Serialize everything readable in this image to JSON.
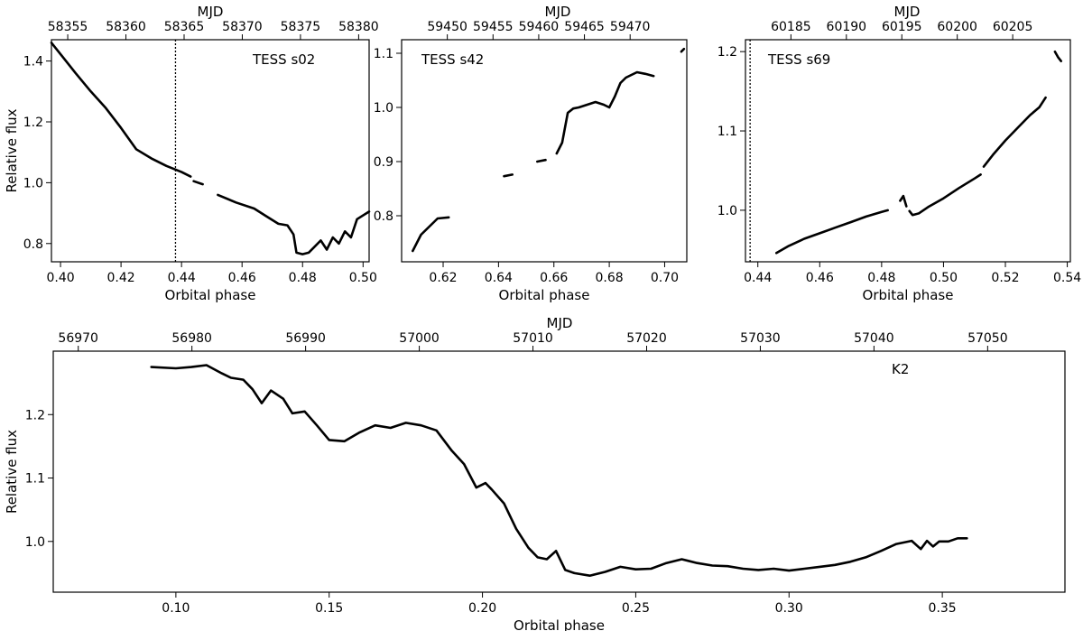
{
  "chart_data": [
    {
      "type": "line",
      "annotation": "TESS s02",
      "xlabel": "Orbital phase",
      "ylabel": "Relative flux",
      "top_axis_label": "MJD",
      "xlim": [
        0.397,
        0.502
      ],
      "ylim": [
        0.74,
        1.47
      ],
      "xticks": [
        0.4,
        0.42,
        0.44,
        0.46,
        0.48,
        0.5
      ],
      "xtick_labels": [
        "0.40",
        "0.42",
        "0.44",
        "0.46",
        "0.48",
        "0.50"
      ],
      "yticks": [
        0.8,
        1.0,
        1.2,
        1.4
      ],
      "ytick_labels": [
        "0.8",
        "1.0",
        "1.2",
        "1.4"
      ],
      "top_ticks": [
        58355,
        58360,
        58365,
        58370,
        58375,
        58380
      ],
      "top_tick_labels": [
        "58355",
        "58360",
        "58365",
        "58370",
        "58375",
        "58380"
      ],
      "top_range": [
        58353.6,
        58380.9
      ],
      "vline_x": 0.438,
      "segments": [
        {
          "x": [
            0.397,
            0.401,
            0.405,
            0.41,
            0.415,
            0.42,
            0.425,
            0.43,
            0.435,
            0.44,
            0.443
          ],
          "y": [
            1.46,
            1.41,
            1.36,
            1.3,
            1.245,
            1.18,
            1.11,
            1.08,
            1.055,
            1.035,
            1.02
          ]
        },
        {
          "x": [
            0.444,
            0.447
          ],
          "y": [
            1.005,
            0.995
          ]
        },
        {
          "x": [
            0.452,
            0.458,
            0.464,
            0.468,
            0.472,
            0.475,
            0.477,
            0.478,
            0.48,
            0.482,
            0.484,
            0.486,
            0.488,
            0.49,
            0.492,
            0.494,
            0.496,
            0.498,
            0.502
          ],
          "y": [
            0.96,
            0.935,
            0.915,
            0.89,
            0.865,
            0.86,
            0.83,
            0.77,
            0.765,
            0.77,
            0.79,
            0.81,
            0.78,
            0.82,
            0.8,
            0.84,
            0.82,
            0.88,
            0.905
          ]
        }
      ]
    },
    {
      "type": "line",
      "annotation": "TESS s42",
      "xlabel": "Orbital phase",
      "ylabel": "",
      "top_axis_label": "MJD",
      "xlim": [
        0.605,
        0.708
      ],
      "ylim": [
        0.715,
        1.125
      ],
      "xticks": [
        0.62,
        0.64,
        0.66,
        0.68,
        0.7
      ],
      "xtick_labels": [
        "0.62",
        "0.64",
        "0.66",
        "0.68",
        "0.70"
      ],
      "yticks": [
        0.8,
        0.9,
        1.0,
        1.1
      ],
      "ytick_labels": [
        "0.8",
        "0.9",
        "1.0",
        "1.1"
      ],
      "top_ticks": [
        59450,
        59455,
        59460,
        59465,
        59470
      ],
      "top_tick_labels": [
        "59450",
        "59455",
        "59460",
        "59465",
        "59470"
      ],
      "top_range": [
        59445.0,
        59476.2
      ],
      "segments": [
        {
          "x": [
            0.609,
            0.612,
            0.615,
            0.618,
            0.622
          ],
          "y": [
            0.735,
            0.765,
            0.78,
            0.795,
            0.797
          ]
        },
        {
          "x": [
            0.642,
            0.645
          ],
          "y": [
            0.873,
            0.876
          ]
        },
        {
          "x": [
            0.654,
            0.657
          ],
          "y": [
            0.9,
            0.903
          ]
        },
        {
          "x": [
            0.661,
            0.663,
            0.665,
            0.667,
            0.669,
            0.672,
            0.675,
            0.678,
            0.68,
            0.682,
            0.684,
            0.686,
            0.688,
            0.69,
            0.693,
            0.696
          ],
          "y": [
            0.915,
            0.935,
            0.99,
            0.998,
            1.0,
            1.005,
            1.01,
            1.005,
            1.0,
            1.02,
            1.045,
            1.055,
            1.06,
            1.065,
            1.062,
            1.058
          ]
        },
        {
          "x": [
            0.706,
            0.707
          ],
          "y": [
            1.103,
            1.108
          ]
        }
      ]
    },
    {
      "type": "line",
      "annotation": "TESS s69",
      "xlabel": "Orbital phase",
      "ylabel": "",
      "top_axis_label": "MJD",
      "xlim": [
        0.436,
        0.541
      ],
      "ylim": [
        0.935,
        1.215
      ],
      "xticks": [
        0.44,
        0.46,
        0.48,
        0.5,
        0.52,
        0.54
      ],
      "xtick_labels": [
        "0.44",
        "0.46",
        "0.48",
        "0.50",
        "0.52",
        "0.54"
      ],
      "yticks": [
        1.0,
        1.1,
        1.2
      ],
      "ytick_labels": [
        "1.0",
        "1.1",
        "1.2"
      ],
      "top_ticks": [
        60185,
        60190,
        60195,
        60200,
        60205
      ],
      "top_tick_labels": [
        "60185",
        "60190",
        "60195",
        "60200",
        "60205"
      ],
      "top_range": [
        60180.9,
        60210.2
      ],
      "vline_x": 0.4375,
      "segments": [
        {
          "x": [
            0.446,
            0.45,
            0.455,
            0.46,
            0.465,
            0.47,
            0.475,
            0.48,
            0.482
          ],
          "y": [
            0.946,
            0.955,
            0.964,
            0.971,
            0.978,
            0.985,
            0.992,
            0.998,
            1.0
          ]
        },
        {
          "x": [
            0.486,
            0.487,
            0.488
          ],
          "y": [
            1.012,
            1.018,
            1.005
          ]
        },
        {
          "x": [
            0.489,
            0.49,
            0.492,
            0.495,
            0.5,
            0.505,
            0.51,
            0.512
          ],
          "y": [
            0.999,
            0.994,
            0.996,
            1.004,
            1.015,
            1.028,
            1.04,
            1.045
          ]
        },
        {
          "x": [
            0.513,
            0.516,
            0.52,
            0.524,
            0.528,
            0.531,
            0.533
          ],
          "y": [
            1.055,
            1.07,
            1.088,
            1.104,
            1.12,
            1.13,
            1.142
          ]
        },
        {
          "x": [
            0.536,
            0.537,
            0.538
          ],
          "y": [
            1.2,
            1.193,
            1.188
          ]
        }
      ]
    },
    {
      "type": "line",
      "annotation": "K2",
      "xlabel": "Orbital phase",
      "ylabel": "Relative flux",
      "top_axis_label": "MJD",
      "xlim": [
        0.06,
        0.39
      ],
      "ylim": [
        0.92,
        1.3
      ],
      "xticks": [
        0.1,
        0.15,
        0.2,
        0.25,
        0.3,
        0.35
      ],
      "xtick_labels": [
        "0.10",
        "0.15",
        "0.20",
        "0.25",
        "0.30",
        "0.35"
      ],
      "yticks": [
        1.0,
        1.1,
        1.2
      ],
      "ytick_labels": [
        "1.0",
        "1.1",
        "1.2"
      ],
      "top_ticks": [
        56970,
        56980,
        56990,
        57000,
        57010,
        57020,
        57030,
        57040,
        57050
      ],
      "top_tick_labels": [
        "56970",
        "56980",
        "56990",
        "57000",
        "57010",
        "57020",
        "57030",
        "57040",
        "57050"
      ],
      "top_range": [
        56967.8,
        57056.8
      ],
      "segments": [
        {
          "x": [
            0.092,
            0.1,
            0.105,
            0.11,
            0.115,
            0.118,
            0.122,
            0.125,
            0.128,
            0.131,
            0.135,
            0.138,
            0.142,
            0.146,
            0.15,
            0.155,
            0.16,
            0.165,
            0.17,
            0.175,
            0.18,
            0.185,
            0.19,
            0.194,
            0.198,
            0.201,
            0.203,
            0.207,
            0.211,
            0.215,
            0.218,
            0.221,
            0.224,
            0.227,
            0.23,
            0.235,
            0.24,
            0.245,
            0.25,
            0.255,
            0.26,
            0.265,
            0.27,
            0.275,
            0.28,
            0.285,
            0.29,
            0.295,
            0.3,
            0.305,
            0.31,
            0.315,
            0.32,
            0.325,
            0.33,
            0.335,
            0.34,
            0.343,
            0.345,
            0.347,
            0.349,
            0.352,
            0.355,
            0.358
          ],
          "y": [
            1.275,
            1.273,
            1.275,
            1.278,
            1.265,
            1.258,
            1.255,
            1.24,
            1.218,
            1.238,
            1.225,
            1.202,
            1.205,
            1.183,
            1.16,
            1.158,
            1.172,
            1.183,
            1.179,
            1.187,
            1.183,
            1.175,
            1.143,
            1.122,
            1.085,
            1.092,
            1.082,
            1.06,
            1.02,
            0.99,
            0.975,
            0.972,
            0.985,
            0.955,
            0.95,
            0.946,
            0.952,
            0.96,
            0.956,
            0.957,
            0.966,
            0.972,
            0.966,
            0.962,
            0.961,
            0.957,
            0.955,
            0.957,
            0.954,
            0.957,
            0.96,
            0.963,
            0.968,
            0.975,
            0.985,
            0.996,
            1.001,
            0.988,
            1.001,
            0.992,
            1.0,
            1.0,
            1.005,
            1.005
          ]
        }
      ]
    }
  ]
}
